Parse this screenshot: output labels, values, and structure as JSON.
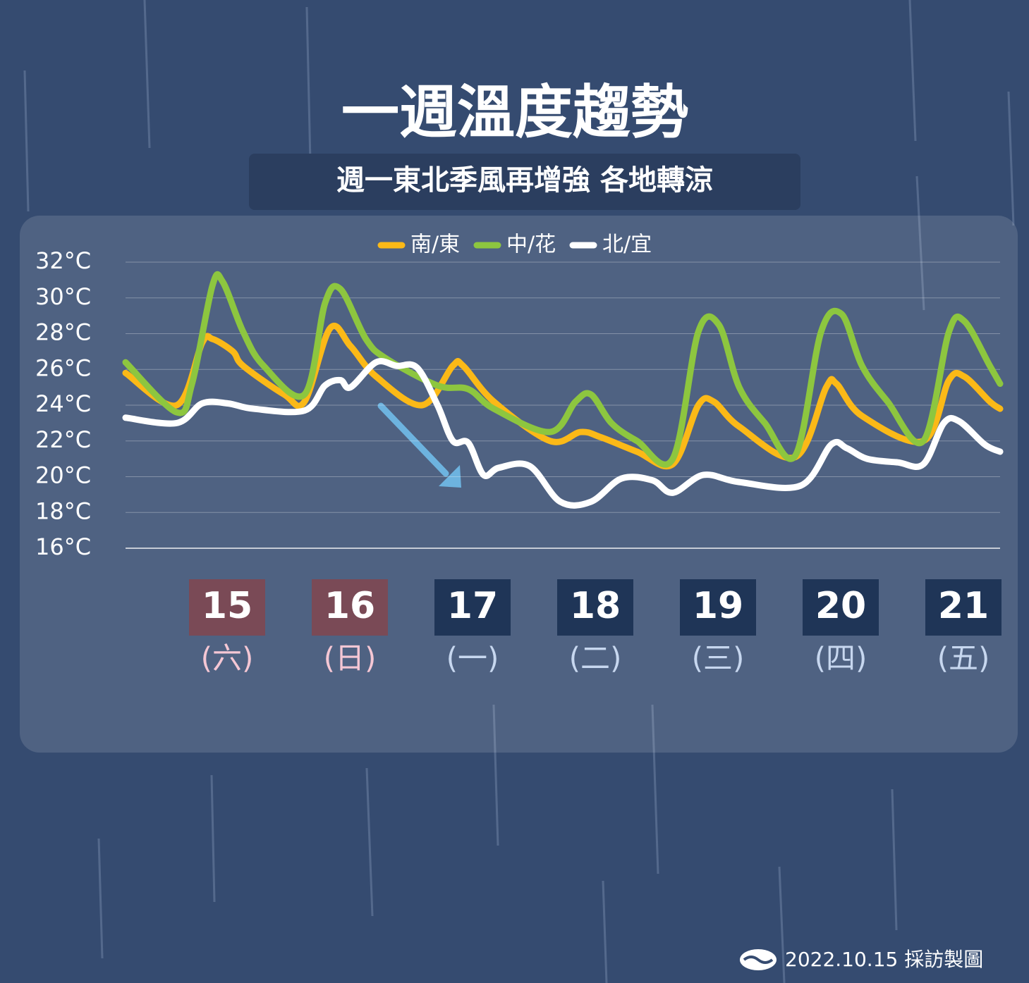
{
  "chart_data": {
    "type": "line",
    "title": "一週溫度趨勢",
    "subtitle": "週一東北季風再增強 各地轉涼",
    "footer": "2022.10.15 採訪製圖",
    "xlim": [
      0,
      171
    ],
    "ylim": [
      16,
      32
    ],
    "yticks": [
      {
        "value": 16,
        "label": "16°C"
      },
      {
        "value": 18,
        "label": "18°C"
      },
      {
        "value": 20,
        "label": "20°C"
      },
      {
        "value": 22,
        "label": "22°C"
      },
      {
        "value": 24,
        "label": "24°C"
      },
      {
        "value": 26,
        "label": "26°C"
      },
      {
        "value": 28,
        "label": "28°C"
      },
      {
        "value": 30,
        "label": "30°C"
      },
      {
        "value": 32,
        "label": "32°C"
      }
    ],
    "grid": true,
    "legend": "top",
    "series": [
      {
        "name": "南/東",
        "color": "#fbb917",
        "x": [
          0,
          10,
          15,
          17,
          21,
          23,
          31,
          35,
          40,
          44,
          49,
          58,
          64,
          66,
          72,
          83,
          89,
          93,
          100,
          107,
          112,
          115,
          120,
          131,
          137,
          139,
          144,
          156,
          161,
          164,
          169,
          171
        ],
        "values": [
          25.8,
          24.0,
          27.5,
          27.7,
          27.0,
          26.2,
          24.6,
          24.2,
          28.3,
          27.3,
          25.6,
          24.0,
          26.2,
          26.2,
          24.2,
          22.0,
          22.5,
          22.2,
          21.4,
          20.7,
          24.0,
          24.2,
          22.8,
          21.1,
          25.0,
          25.2,
          23.4,
          22.0,
          25.4,
          25.6,
          24.2,
          23.8
        ]
      },
      {
        "name": "中/花",
        "color": "#8dc63f",
        "x": [
          0,
          10,
          13,
          17,
          19,
          23,
          27,
          35,
          39,
          42,
          47,
          51,
          61,
          67,
          72,
          83,
          88,
          91,
          95,
          100,
          107,
          112,
          116,
          120,
          125,
          131,
          136,
          140,
          144,
          149,
          156,
          161,
          164,
          169,
          171
        ],
        "values": [
          26.4,
          23.6,
          25.2,
          30.7,
          30.9,
          28.1,
          26.2,
          24.6,
          29.7,
          30.5,
          27.7,
          26.6,
          25.1,
          24.9,
          23.8,
          22.5,
          24.2,
          24.6,
          23.0,
          22.0,
          21.0,
          28.1,
          28.5,
          25.0,
          23.0,
          21.2,
          28.1,
          29.1,
          26.2,
          24.2,
          22.0,
          28.1,
          28.7,
          26.2,
          25.2
        ]
      },
      {
        "name": "北/宜",
        "color": "#ffffff",
        "x": [
          0,
          10,
          15,
          20,
          25,
          35,
          39,
          42,
          44,
          49,
          53,
          57,
          61,
          64,
          67,
          70,
          73,
          79,
          85,
          91,
          97,
          103,
          107,
          113,
          120,
          132,
          138,
          141,
          145,
          151,
          156,
          160,
          163,
          168,
          171
        ],
        "values": [
          23.3,
          23.0,
          24.1,
          24.1,
          23.8,
          23.7,
          25.1,
          25.4,
          25.0,
          26.4,
          26.2,
          26.1,
          24.0,
          22.0,
          21.9,
          20.1,
          20.5,
          20.6,
          18.6,
          18.6,
          19.9,
          19.8,
          19.1,
          20.1,
          19.7,
          19.5,
          21.8,
          21.6,
          21.0,
          20.8,
          20.7,
          23.0,
          23.1,
          21.8,
          21.4
        ]
      }
    ],
    "days": [
      {
        "date": "15",
        "weekday": "(六)",
        "highlight": true
      },
      {
        "date": "16",
        "weekday": "(日)",
        "highlight": true
      },
      {
        "date": "17",
        "weekday": "(一)",
        "highlight": false
      },
      {
        "date": "18",
        "weekday": "(二)",
        "highlight": false
      },
      {
        "date": "19",
        "weekday": "(三)",
        "highlight": false
      },
      {
        "date": "20",
        "weekday": "(四)",
        "highlight": false
      },
      {
        "date": "21",
        "weekday": "(五)",
        "highlight": false
      }
    ]
  }
}
